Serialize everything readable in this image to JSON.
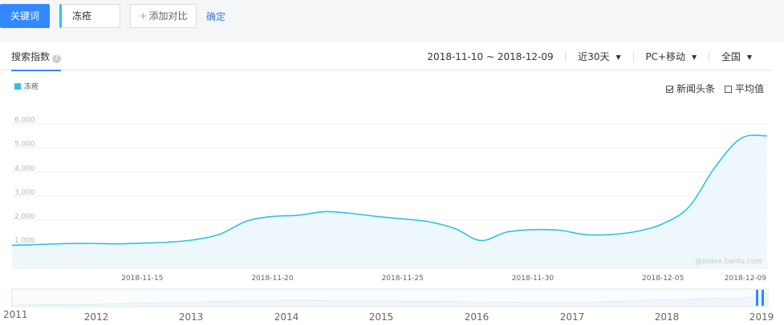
{
  "toolbar": {
    "keyword_button": "关键词",
    "keyword_value": "冻疮",
    "add_compare_label": "添加对比",
    "add_compare_icon": "plus-icon",
    "confirm_label": "确定"
  },
  "panel": {
    "tab_search_index": "搜索指数",
    "help_icon_glyph": "?",
    "date_range": "2018-11-10 ~ 2018-12-09",
    "period": "近30天",
    "device": "PC+移动",
    "region": "全国",
    "option_news": "新闻头条",
    "option_news_checked": true,
    "option_average": "平均值",
    "option_average_checked": false,
    "watermark": "@index.baidu.com"
  },
  "colors": {
    "primary": "#3388ff",
    "series": "#2fc0e8",
    "link": "#3b7bd4"
  },
  "chart_data": {
    "type": "area",
    "series": [
      {
        "name": "冻疮",
        "x": [
          "2018-11-10",
          "2018-11-11",
          "2018-11-12",
          "2018-11-13",
          "2018-11-14",
          "2018-11-15",
          "2018-11-16",
          "2018-11-17",
          "2018-11-18",
          "2018-11-19",
          "2018-11-20",
          "2018-11-21",
          "2018-11-22",
          "2018-11-23",
          "2018-11-24",
          "2018-11-25",
          "2018-11-26",
          "2018-11-27",
          "2018-11-28",
          "2018-11-29",
          "2018-11-30",
          "2018-12-01",
          "2018-12-02",
          "2018-12-03",
          "2018-12-04",
          "2018-12-05",
          "2018-12-06",
          "2018-12-07",
          "2018-12-08",
          "2018-12-09"
        ],
        "values": [
          950,
          980,
          1020,
          1030,
          1010,
          1040,
          1080,
          1180,
          1420,
          1950,
          2150,
          2200,
          2350,
          2280,
          2150,
          2050,
          1930,
          1650,
          1150,
          1500,
          1600,
          1580,
          1400,
          1400,
          1530,
          1850,
          2550,
          4200,
          5400,
          5500
        ]
      }
    ],
    "x_tick_labels": [
      "2018-11-15",
      "2018-11-20",
      "2018-11-25",
      "2018-11-30",
      "2018-12-05",
      "2018-12-09"
    ],
    "y_ticks": [
      "1,000",
      "2,000",
      "3,000",
      "4,000",
      "5,000",
      "6,000"
    ],
    "ylim": [
      0,
      6000
    ],
    "grid": true,
    "legend": "top-left",
    "range_selector": {
      "year_labels": [
        "2011",
        "2012",
        "2013",
        "2014",
        "2015",
        "2016",
        "2017",
        "2018",
        "2019"
      ],
      "selected_window": "2018-11-10 ~ 2018-12-09"
    }
  }
}
